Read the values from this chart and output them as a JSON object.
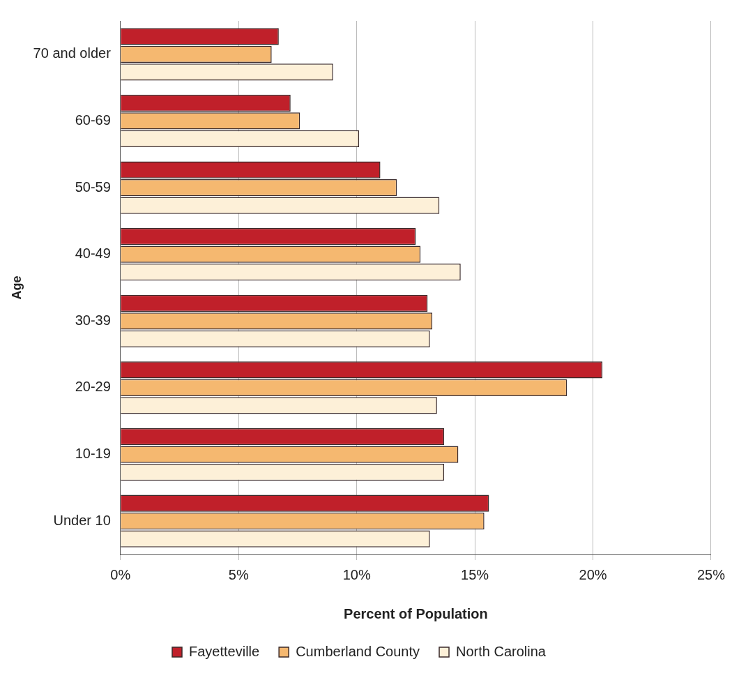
{
  "chart_data": {
    "type": "bar",
    "orientation": "horizontal",
    "xlabel": "Percent of Population",
    "ylabel": "Age",
    "categories": [
      "70 and older",
      "60-69",
      "50-59",
      "40-49",
      "30-39",
      "20-29",
      "10-19",
      "Under 10"
    ],
    "series": [
      {
        "name": "Fayetteville",
        "color": "#c0202a",
        "values": [
          6.7,
          7.2,
          11.0,
          12.5,
          13.0,
          20.4,
          13.7,
          15.6
        ]
      },
      {
        "name": "Cumberland County",
        "color": "#f5b870",
        "values": [
          6.4,
          7.6,
          11.7,
          12.7,
          13.2,
          18.9,
          14.3,
          15.4
        ]
      },
      {
        "name": "North Carolina",
        "color": "#fdf0d8",
        "values": [
          9.0,
          10.1,
          13.5,
          14.4,
          13.1,
          13.4,
          13.7,
          13.1
        ]
      }
    ],
    "xlim": [
      0,
      25
    ],
    "xticks": [
      {
        "value": 0,
        "label": "0%"
      },
      {
        "value": 5,
        "label": "5%"
      },
      {
        "value": 10,
        "label": "10%"
      },
      {
        "value": 15,
        "label": "15%"
      },
      {
        "value": 20,
        "label": "20%"
      },
      {
        "value": 25,
        "label": "25%"
      }
    ],
    "grid": "x",
    "legend": "bottom"
  }
}
